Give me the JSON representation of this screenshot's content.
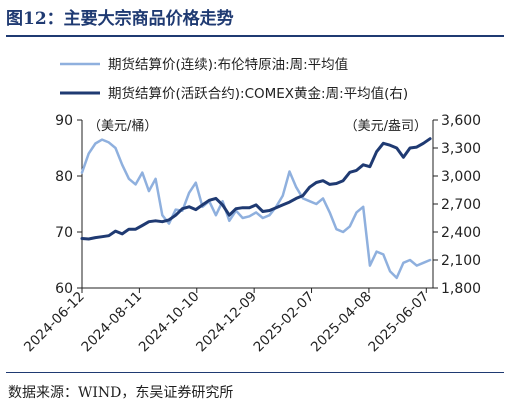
{
  "figure": {
    "title": "图12：主要大宗商品价格走势",
    "source": "数据来源：WIND，东吴证券研究所"
  },
  "colors": {
    "title": "#1f3a72",
    "oil_series": "#8fb0de",
    "gold_series": "#1f3a72"
  },
  "chart_data": {
    "type": "line",
    "left_axis": {
      "unit": "（美元/桶）",
      "ylim": [
        60,
        90
      ],
      "ticks": [
        "60",
        "70",
        "80",
        "90"
      ]
    },
    "right_axis": {
      "unit": "（美元/盎司）",
      "ylim": [
        1800,
        3600
      ],
      "ticks": [
        "1,800",
        "2,100",
        "2,400",
        "2,700",
        "3,000",
        "3,300",
        "3,600"
      ]
    },
    "x_ticks": [
      "2024-06-12",
      "2024-08-11",
      "2024-10-10",
      "2024-12-09",
      "2025-02-07",
      "2025-04-08",
      "2025-06-07"
    ],
    "x_range": [
      "2024-06-12",
      "2025-06-14"
    ],
    "legend_position": "top",
    "grid": false,
    "series": [
      {
        "name": "期货结算价(连续):布伦特原油:周:平均值",
        "axis": "left",
        "points": [
          [
            "2024-06-12",
            80.6
          ],
          [
            "2024-06-19",
            84.0
          ],
          [
            "2024-06-26",
            85.8
          ],
          [
            "2024-07-03",
            86.5
          ],
          [
            "2024-07-10",
            86.0
          ],
          [
            "2024-07-17",
            85.0
          ],
          [
            "2024-07-24",
            82.0
          ],
          [
            "2024-07-31",
            79.5
          ],
          [
            "2024-08-07",
            78.5
          ],
          [
            "2024-08-14",
            80.6
          ],
          [
            "2024-08-21",
            77.3
          ],
          [
            "2024-08-28",
            79.5
          ],
          [
            "2024-09-04",
            73.0
          ],
          [
            "2024-09-11",
            71.5
          ],
          [
            "2024-09-18",
            74.0
          ],
          [
            "2024-09-25",
            73.8
          ],
          [
            "2024-10-02",
            77.0
          ],
          [
            "2024-10-09",
            78.8
          ],
          [
            "2024-10-16",
            74.5
          ],
          [
            "2024-10-23",
            75.5
          ],
          [
            "2024-10-30",
            73.0
          ],
          [
            "2024-11-06",
            75.5
          ],
          [
            "2024-11-13",
            72.0
          ],
          [
            "2024-11-20",
            73.8
          ],
          [
            "2024-11-27",
            72.5
          ],
          [
            "2024-12-04",
            72.8
          ],
          [
            "2024-12-11",
            73.5
          ],
          [
            "2024-12-18",
            72.5
          ],
          [
            "2024-12-25",
            73.0
          ],
          [
            "2025-01-01",
            74.5
          ],
          [
            "2025-01-08",
            76.5
          ],
          [
            "2025-01-15",
            80.8
          ],
          [
            "2025-01-22",
            78.0
          ],
          [
            "2025-01-29",
            76.0
          ],
          [
            "2025-02-05",
            75.5
          ],
          [
            "2025-02-12",
            75.0
          ],
          [
            "2025-02-19",
            76.0
          ],
          [
            "2025-02-26",
            73.5
          ],
          [
            "2025-03-05",
            70.5
          ],
          [
            "2025-03-12",
            70.0
          ],
          [
            "2025-03-19",
            71.0
          ],
          [
            "2025-03-26",
            73.5
          ],
          [
            "2025-04-02",
            74.5
          ],
          [
            "2025-04-09",
            64.0
          ],
          [
            "2025-04-16",
            66.5
          ],
          [
            "2025-04-23",
            66.0
          ],
          [
            "2025-04-30",
            63.0
          ],
          [
            "2025-05-07",
            61.8
          ],
          [
            "2025-05-14",
            64.5
          ],
          [
            "2025-05-21",
            65.0
          ],
          [
            "2025-05-28",
            64.0
          ],
          [
            "2025-06-04",
            64.5
          ],
          [
            "2025-06-11",
            65.0
          ]
        ]
      },
      {
        "name": "期货结算价(活跃合约):COMEX黄金:周:平均值(右)",
        "axis": "right",
        "points": [
          [
            "2024-06-12",
            2330
          ],
          [
            "2024-06-19",
            2325
          ],
          [
            "2024-06-26",
            2340
          ],
          [
            "2024-07-03",
            2350
          ],
          [
            "2024-07-10",
            2360
          ],
          [
            "2024-07-17",
            2410
          ],
          [
            "2024-07-24",
            2380
          ],
          [
            "2024-07-31",
            2430
          ],
          [
            "2024-08-07",
            2430
          ],
          [
            "2024-08-14",
            2470
          ],
          [
            "2024-08-21",
            2510
          ],
          [
            "2024-08-28",
            2520
          ],
          [
            "2024-09-04",
            2510
          ],
          [
            "2024-09-11",
            2530
          ],
          [
            "2024-09-18",
            2580
          ],
          [
            "2024-09-25",
            2650
          ],
          [
            "2024-10-02",
            2670
          ],
          [
            "2024-10-09",
            2640
          ],
          [
            "2024-10-16",
            2690
          ],
          [
            "2024-10-23",
            2740
          ],
          [
            "2024-10-30",
            2760
          ],
          [
            "2024-11-06",
            2690
          ],
          [
            "2024-11-13",
            2580
          ],
          [
            "2024-11-20",
            2650
          ],
          [
            "2024-11-27",
            2660
          ],
          [
            "2024-12-04",
            2660
          ],
          [
            "2024-12-11",
            2690
          ],
          [
            "2024-12-18",
            2620
          ],
          [
            "2024-12-25",
            2630
          ],
          [
            "2025-01-01",
            2660
          ],
          [
            "2025-01-08",
            2690
          ],
          [
            "2025-01-15",
            2720
          ],
          [
            "2025-01-22",
            2760
          ],
          [
            "2025-01-29",
            2790
          ],
          [
            "2025-02-05",
            2880
          ],
          [
            "2025-02-12",
            2930
          ],
          [
            "2025-02-19",
            2950
          ],
          [
            "2025-02-26",
            2910
          ],
          [
            "2025-03-05",
            2920
          ],
          [
            "2025-03-12",
            2950
          ],
          [
            "2025-03-19",
            3040
          ],
          [
            "2025-03-26",
            3060
          ],
          [
            "2025-04-02",
            3120
          ],
          [
            "2025-04-09",
            3100
          ],
          [
            "2025-04-16",
            3260
          ],
          [
            "2025-04-23",
            3350
          ],
          [
            "2025-04-30",
            3330
          ],
          [
            "2025-05-07",
            3300
          ],
          [
            "2025-05-14",
            3200
          ],
          [
            "2025-05-21",
            3300
          ],
          [
            "2025-05-28",
            3310
          ],
          [
            "2025-06-04",
            3350
          ],
          [
            "2025-06-11",
            3400
          ]
        ]
      }
    ]
  }
}
